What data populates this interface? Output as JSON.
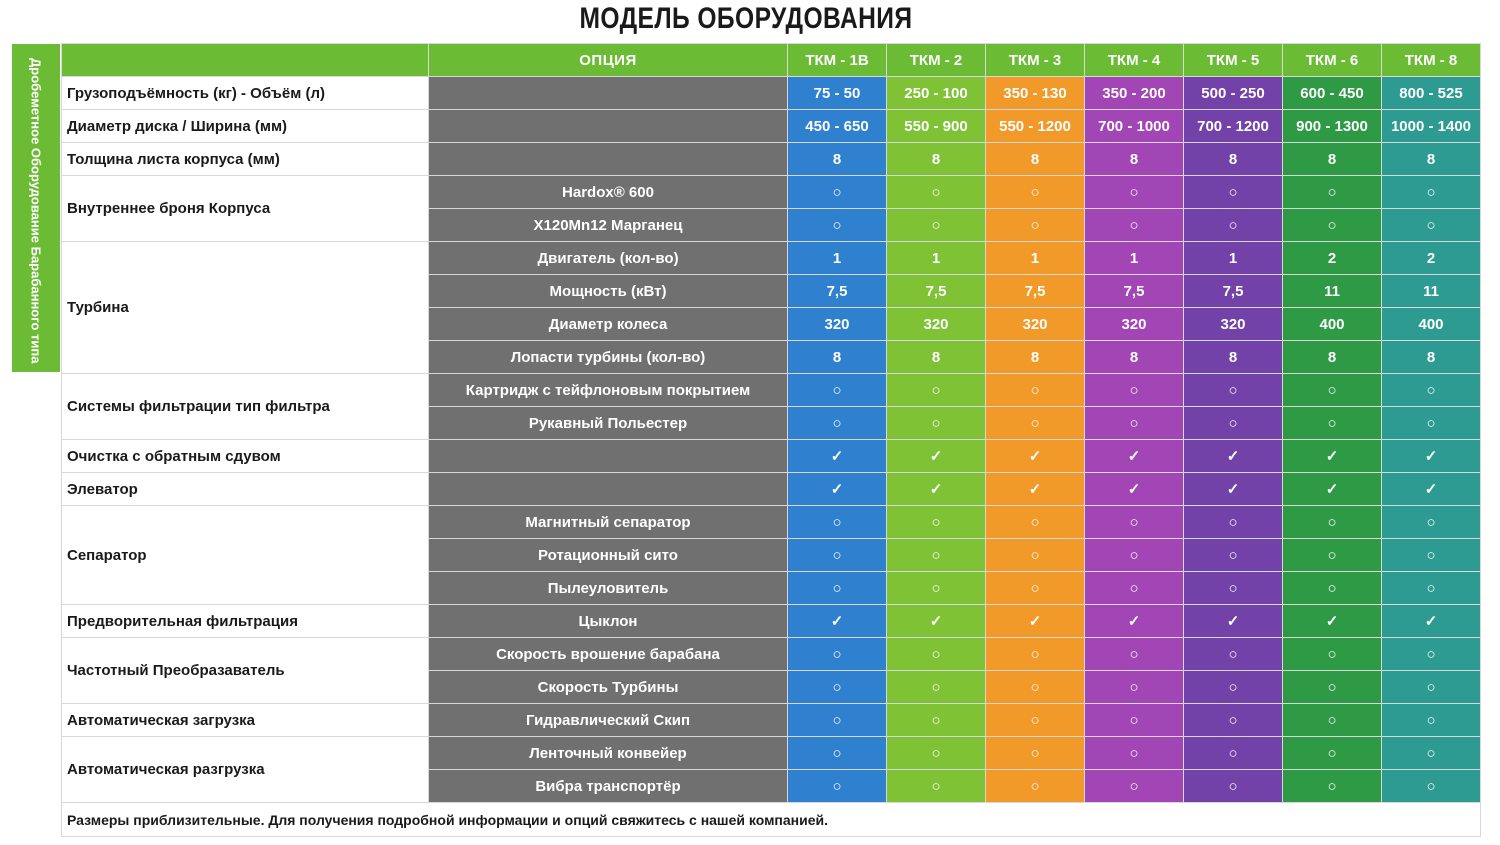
{
  "title": "МОДЕЛЬ ОБОРУДОВАНИЯ",
  "side_label": "Дробеметное Оборудование Барабанного типа",
  "header": {
    "option_label": "ОПЦИЯ",
    "models": [
      "ТКМ - 1B",
      "ТКМ - 2",
      "ТКМ - 3",
      "ТКМ - 4",
      "ТКМ - 5",
      "ТКМ - 6",
      "ТКМ - 8"
    ]
  },
  "colors": {
    "header_green": "#6cbb35",
    "option_gray": "#707070",
    "models": [
      "#2f80cf",
      "#7fc236",
      "#f29a29",
      "#a246b5",
      "#7342a8",
      "#2f9a45",
      "#2e9b93"
    ]
  },
  "symbols": {
    "optional": "○",
    "standard": "✓"
  },
  "groups": [
    {
      "label": "Грузоподъёмность (кг) - Объём (л)",
      "rows": [
        {
          "option": "",
          "values": [
            "75 - 50",
            "250 - 100",
            "350 - 130",
            "350 - 200",
            "500 - 250",
            "600 - 450",
            "800 - 525"
          ]
        }
      ]
    },
    {
      "label": "Диаметр диска / Ширина (мм)",
      "rows": [
        {
          "option": "",
          "values": [
            "450 - 650",
            "550 - 900",
            "550 - 1200",
            "700 - 1000",
            "700 - 1200",
            "900 - 1300",
            "1000 - 1400"
          ]
        }
      ]
    },
    {
      "label": "Толщина листа корпуса (мм)",
      "rows": [
        {
          "option": "",
          "big": true,
          "values": [
            "8",
            "8",
            "8",
            "8",
            "8",
            "8",
            "8"
          ]
        }
      ]
    },
    {
      "label": "Внутреннее броня Корпуса",
      "rows": [
        {
          "option": "Hardox® 600",
          "values": [
            "○",
            "○",
            "○",
            "○",
            "○",
            "○",
            "○"
          ]
        },
        {
          "option": "X120Mn12 Марганец",
          "values": [
            "○",
            "○",
            "○",
            "○",
            "○",
            "○",
            "○"
          ]
        }
      ]
    },
    {
      "label": "Турбина",
      "rows": [
        {
          "option": "Двигатель (кол-во)",
          "values": [
            "1",
            "1",
            "1",
            "1",
            "1",
            "2",
            "2"
          ]
        },
        {
          "option": "Мощность (кВт)",
          "values": [
            "7,5",
            "7,5",
            "7,5",
            "7,5",
            "7,5",
            "11",
            "11"
          ]
        },
        {
          "option": "Диаметр колеса",
          "values": [
            "320",
            "320",
            "320",
            "320",
            "320",
            "400",
            "400"
          ]
        },
        {
          "option": "Лопасти турбины (кол-во)",
          "values": [
            "8",
            "8",
            "8",
            "8",
            "8",
            "8",
            "8"
          ]
        }
      ]
    },
    {
      "label": "Системы фильтрации тип фильтра",
      "rows": [
        {
          "option": "Картридж с тейфлоновым покрытием",
          "values": [
            "○",
            "○",
            "○",
            "○",
            "○",
            "○",
            "○"
          ]
        },
        {
          "option": "Рукавный Польестер",
          "values": [
            "○",
            "○",
            "○",
            "○",
            "○",
            "○",
            "○"
          ]
        }
      ]
    },
    {
      "label": "Очистка с обратным сдувом",
      "rows": [
        {
          "option": "",
          "values": [
            "✓",
            "✓",
            "✓",
            "✓",
            "✓",
            "✓",
            "✓"
          ]
        }
      ]
    },
    {
      "label": "Элеватор",
      "rows": [
        {
          "option": "",
          "values": [
            "✓",
            "✓",
            "✓",
            "✓",
            "✓",
            "✓",
            "✓"
          ]
        }
      ]
    },
    {
      "label": "Сепаратор",
      "rows": [
        {
          "option": "Магнитный сепаратор",
          "values": [
            "○",
            "○",
            "○",
            "○",
            "○",
            "○",
            "○"
          ]
        },
        {
          "option": "Ротационный сито",
          "values": [
            "○",
            "○",
            "○",
            "○",
            "○",
            "○",
            "○"
          ]
        },
        {
          "option": "Пылеуловитель",
          "values": [
            "○",
            "○",
            "○",
            "○",
            "○",
            "○",
            "○"
          ]
        }
      ]
    },
    {
      "label": "Предворительная фильтрация",
      "rows": [
        {
          "option": "Цыклон",
          "values": [
            "✓",
            "✓",
            "✓",
            "✓",
            "✓",
            "✓",
            "✓"
          ]
        }
      ]
    },
    {
      "label": "Частотный Преобразаватель",
      "rows": [
        {
          "option": "Скорость врошение барабана",
          "values": [
            "○",
            "○",
            "○",
            "○",
            "○",
            "○",
            "○"
          ]
        },
        {
          "option": "Скорость Турбины",
          "values": [
            "○",
            "○",
            "○",
            "○",
            "○",
            "○",
            "○"
          ]
        }
      ]
    },
    {
      "label": "Автоматическая загрузка",
      "rows": [
        {
          "option": "Гидравлический Скип",
          "values": [
            "○",
            "○",
            "○",
            "○",
            "○",
            "○",
            "○"
          ]
        }
      ]
    },
    {
      "label": "Автоматическая разгрузка",
      "rows": [
        {
          "option": "Ленточный конвейер",
          "values": [
            "○",
            "○",
            "○",
            "○",
            "○",
            "○",
            "○"
          ]
        },
        {
          "option": "Вибра транспортёр",
          "values": [
            "○",
            "○",
            "○",
            "○",
            "○",
            "○",
            "○"
          ]
        }
      ]
    }
  ],
  "footer": "Размеры приблизительные. Для получения подробной информации и опций свяжитесь с нашей компанией."
}
